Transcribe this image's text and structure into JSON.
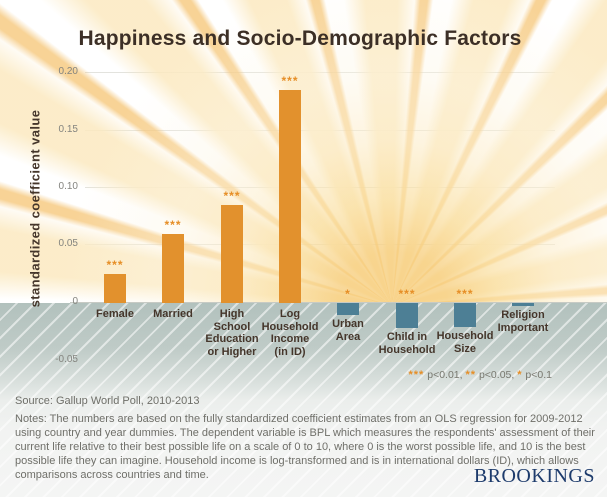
{
  "title": "Happiness and Socio-Demographic Factors",
  "y_axis": {
    "label": "standardized coefficient value",
    "ticks": [
      "0.20",
      "0.15",
      "0.10",
      "0.05",
      "0",
      "-0.05"
    ]
  },
  "legend": {
    "items": [
      {
        "stars": "***",
        "text": " p<0.01, "
      },
      {
        "stars": "**",
        "text": " p<0.05, "
      },
      {
        "stars": "*",
        "text": " p<0.1"
      }
    ]
  },
  "source": "Source: Gallup World Poll, 2010-2013",
  "notes": "Notes: The numbers are based on the fully standardized coefficient estimates from an OLS regression for 2009-2012 using country and year dummies. The dependent variable is BPL which measures the respondents' assessment of their current life relative to their best possible life on a scale of 0 to 10, where 0 is the worst possible life, and 10 is the best possible life they can imagine. Household income is log-transformed and is in international dollars (ID), which allows comparisons across countries and time.",
  "logo": "BROOKINGS",
  "colors": {
    "positive_bar": "#E2912D",
    "negative_bar": "#4D7F95",
    "significance": "#E68E26",
    "title_text": "#3C2F26",
    "logo_navy": "#1D3B6C"
  },
  "chart_data": {
    "type": "bar",
    "title": "Happiness and Socio-Demographic Factors",
    "xlabel": "",
    "ylabel": "standardized coefficient value",
    "ylim": [
      -0.05,
      0.2
    ],
    "yticks": [
      0.2,
      0.15,
      0.1,
      0.05,
      0,
      -0.05
    ],
    "grid": true,
    "categories": [
      "Female",
      "Married",
      "High School Education or Higher",
      "Log Household Income (in ID)",
      "Urban Area",
      "Child in Household",
      "Household Size",
      "Religion Important"
    ],
    "categories_wrapped": [
      "Female",
      "Married",
      "High\nSchool\nEducation\nor Higher",
      "Log\nHousehold\nIncome\n(in ID)",
      "Urban\nArea",
      "Child in\nHousehold",
      "Household\nSize",
      "Religion\nImportant"
    ],
    "values": [
      0.025,
      0.06,
      0.085,
      0.185,
      -0.01,
      -0.022,
      -0.021,
      -0.003
    ],
    "significance": [
      "***",
      "***",
      "***",
      "***",
      "*",
      "***",
      "***",
      ""
    ],
    "significance_legend": "*** p<0.01, ** p<0.05, * p<0.1"
  }
}
